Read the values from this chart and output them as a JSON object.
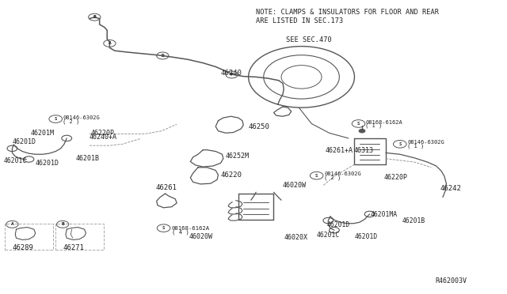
{
  "bg_color": "#ffffff",
  "line_color": "#555555",
  "text_color": "#222222",
  "fig_width": 6.4,
  "fig_height": 3.72,
  "dpi": 100,
  "note_text": "NOTE: CLAMPS & INSULATORS FOR FLOOR AND REAR\nARE LISTED IN SEC.173",
  "see_text": "SEE SEC.470",
  "ref_code": "R462003V"
}
